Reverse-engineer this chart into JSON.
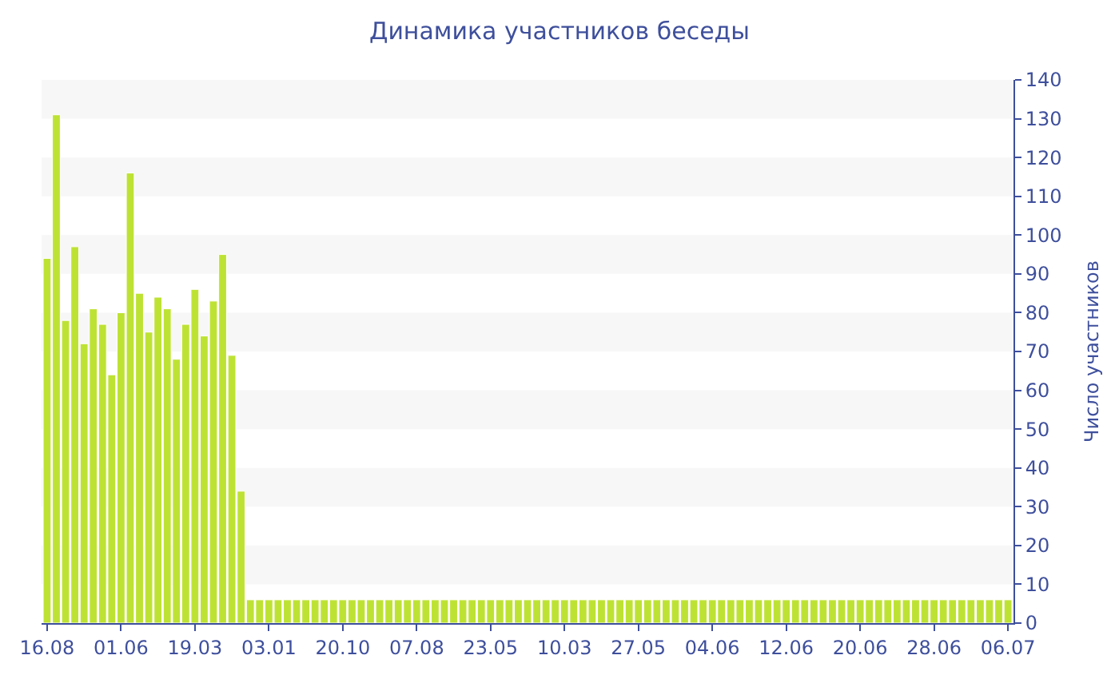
{
  "chart_data": {
    "type": "bar",
    "title": "Динамика участников беседы",
    "ylabel": "Число участников",
    "categories": [
      "16.08",
      null,
      null,
      null,
      null,
      null,
      null,
      null,
      "01.06",
      null,
      null,
      null,
      null,
      null,
      null,
      null,
      "19.03",
      null,
      null,
      null,
      null,
      null,
      null,
      null,
      "03.01",
      null,
      null,
      null,
      null,
      null,
      null,
      null,
      "20.10",
      null,
      null,
      null,
      null,
      null,
      null,
      null,
      "07.08",
      null,
      null,
      null,
      null,
      null,
      null,
      null,
      "23.05",
      null,
      null,
      null,
      null,
      null,
      null,
      null,
      "10.03",
      null,
      null,
      null,
      null,
      null,
      null,
      null,
      "27.05",
      null,
      null,
      null,
      null,
      null,
      null,
      null,
      "04.06",
      null,
      null,
      null,
      null,
      null,
      null,
      null,
      "12.06",
      null,
      null,
      null,
      null,
      null,
      null,
      null,
      "20.06",
      null,
      null,
      null,
      null,
      null,
      null,
      null,
      "28.06",
      null,
      null,
      null,
      null,
      null,
      null,
      null,
      "06.07"
    ],
    "values": [
      94,
      131,
      78,
      97,
      72,
      81,
      77,
      64,
      80,
      116,
      85,
      75,
      84,
      81,
      68,
      77,
      86,
      74,
      83,
      95,
      69,
      34,
      6,
      6,
      6,
      6,
      6,
      6,
      6,
      6,
      6,
      6,
      6,
      6,
      6,
      6,
      6,
      6,
      6,
      6,
      6,
      6,
      6,
      6,
      6,
      6,
      6,
      6,
      6,
      6,
      6,
      6,
      6,
      6,
      6,
      6,
      6,
      6,
      6,
      6,
      6,
      6,
      6,
      6,
      6,
      6,
      6,
      6,
      6,
      6,
      6,
      6,
      6,
      6,
      6,
      6,
      6,
      6,
      6,
      6,
      6,
      6,
      6,
      6,
      6,
      6,
      6,
      6,
      6,
      6,
      6,
      6,
      6,
      6,
      6,
      6,
      6,
      6,
      6,
      6,
      6,
      6,
      6,
      6,
      6
    ],
    "color": "#bee234",
    "ylim": [
      0,
      140
    ],
    "yticks": [
      0,
      10,
      20,
      30,
      40,
      50,
      60,
      70,
      80,
      90,
      100,
      110,
      120,
      130,
      140
    ],
    "bands": [
      {
        "axis": "y",
        "from": 10,
        "to": 20,
        "color": "#f7f7f7"
      },
      {
        "axis": "y",
        "from": 30,
        "to": 40,
        "color": "#f7f7f7"
      },
      {
        "axis": "y",
        "from": 50,
        "to": 60,
        "color": "#f7f7f7"
      },
      {
        "axis": "y",
        "from": 70,
        "to": 80,
        "color": "#f7f7f7"
      },
      {
        "axis": "y",
        "from": 90,
        "to": 100,
        "color": "#f7f7f7"
      },
      {
        "axis": "y",
        "from": 110,
        "to": 120,
        "color": "#f7f7f7"
      },
      {
        "axis": "y",
        "from": 130,
        "to": 140,
        "color": "#f7f7f7"
      }
    ]
  }
}
